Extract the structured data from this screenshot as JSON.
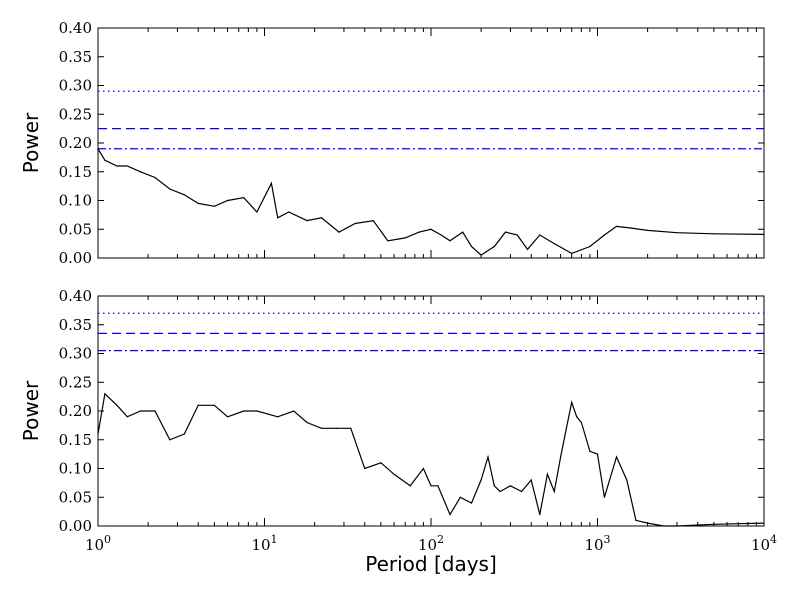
{
  "chart_data": [
    {
      "type": "line",
      "title": "",
      "xlabel": "",
      "ylabel": "Power",
      "xscale": "log",
      "xlim": [
        1,
        10000
      ],
      "ylim": [
        0,
        0.4
      ],
      "yticks": [
        "0.00",
        "0.05",
        "0.10",
        "0.15",
        "0.20",
        "0.25",
        "0.30",
        "0.35",
        "0.40"
      ],
      "x_tick_labels_shown": false,
      "grid": false,
      "thresholds": [
        {
          "value": 0.29,
          "style": "dotted",
          "color": "#0000ff"
        },
        {
          "value": 0.225,
          "style": "dashed",
          "color": "#0000ff"
        },
        {
          "value": 0.19,
          "style": "dashdot",
          "color": "#0000ff"
        }
      ],
      "series": [
        {
          "color": "#000000",
          "x": [
            1.0,
            1.1,
            1.3,
            1.5,
            1.8,
            2.2,
            2.7,
            3.3,
            4.0,
            5.0,
            6.0,
            7.5,
            9.0,
            11.0,
            12.0,
            14.0,
            18.0,
            22.0,
            28.0,
            35.0,
            45.0,
            55.0,
            70.0,
            85.0,
            100.0,
            115.0,
            130.0,
            155.0,
            175.0,
            200.0,
            240.0,
            280.0,
            330.0,
            380.0,
            450.0,
            550.0,
            700.0,
            900.0,
            1100.0,
            1300.0,
            1600.0,
            2000.0,
            3000.0,
            5000.0,
            10000.0
          ],
          "y": [
            0.19,
            0.17,
            0.16,
            0.16,
            0.15,
            0.14,
            0.12,
            0.11,
            0.095,
            0.09,
            0.1,
            0.105,
            0.08,
            0.13,
            0.07,
            0.08,
            0.065,
            0.07,
            0.045,
            0.06,
            0.065,
            0.03,
            0.035,
            0.045,
            0.05,
            0.04,
            0.03,
            0.045,
            0.02,
            0.005,
            0.02,
            0.045,
            0.04,
            0.015,
            0.04,
            0.025,
            0.008,
            0.02,
            0.04,
            0.055,
            0.052,
            0.048,
            0.044,
            0.042,
            0.041
          ]
        }
      ]
    },
    {
      "type": "line",
      "title": "",
      "xlabel": "Period [days]",
      "ylabel": "Power",
      "xscale": "log",
      "xlim": [
        1,
        10000
      ],
      "ylim": [
        0,
        0.4
      ],
      "yticks": [
        "0.00",
        "0.05",
        "0.10",
        "0.15",
        "0.20",
        "0.25",
        "0.30",
        "0.35",
        "0.40"
      ],
      "xticks": [
        {
          "value": 1,
          "base": "10",
          "exp": "0"
        },
        {
          "value": 10,
          "base": "10",
          "exp": "1"
        },
        {
          "value": 100,
          "base": "10",
          "exp": "2"
        },
        {
          "value": 1000,
          "base": "10",
          "exp": "3"
        },
        {
          "value": 10000,
          "base": "10",
          "exp": "4"
        }
      ],
      "grid": false,
      "thresholds": [
        {
          "value": 0.37,
          "style": "dotted",
          "color": "#0000ff"
        },
        {
          "value": 0.335,
          "style": "dashed",
          "color": "#0000ff"
        },
        {
          "value": 0.305,
          "style": "dashdot",
          "color": "#0000ff"
        }
      ],
      "series": [
        {
          "color": "#000000",
          "x": [
            1.0,
            1.1,
            1.3,
            1.5,
            1.8,
            2.2,
            2.7,
            3.3,
            4.0,
            5.0,
            6.0,
            7.5,
            9.0,
            12.0,
            15.0,
            18.0,
            22.0,
            27.0,
            33.0,
            40.0,
            50.0,
            60.0,
            75.0,
            90.0,
            100.0,
            110.0,
            130.0,
            150.0,
            175.0,
            200.0,
            220.0,
            240.0,
            260.0,
            300.0,
            350.0,
            400.0,
            450.0,
            500.0,
            550.0,
            600.0,
            650.0,
            700.0,
            750.0,
            800.0,
            900.0,
            1000.0,
            1100.0,
            1300.0,
            1500.0,
            1700.0,
            2000.0,
            2500.0,
            3000.0,
            5000.0,
            10000.0
          ],
          "y": [
            0.16,
            0.23,
            0.21,
            0.19,
            0.2,
            0.2,
            0.15,
            0.16,
            0.21,
            0.21,
            0.19,
            0.2,
            0.2,
            0.19,
            0.2,
            0.18,
            0.17,
            0.17,
            0.17,
            0.1,
            0.11,
            0.09,
            0.07,
            0.1,
            0.07,
            0.07,
            0.02,
            0.05,
            0.04,
            0.08,
            0.12,
            0.07,
            0.06,
            0.07,
            0.06,
            0.08,
            0.02,
            0.09,
            0.06,
            0.12,
            0.17,
            0.215,
            0.19,
            0.18,
            0.13,
            0.125,
            0.05,
            0.12,
            0.08,
            0.01,
            0.005,
            0.0,
            0.0,
            0.003,
            0.005
          ]
        }
      ]
    }
  ]
}
